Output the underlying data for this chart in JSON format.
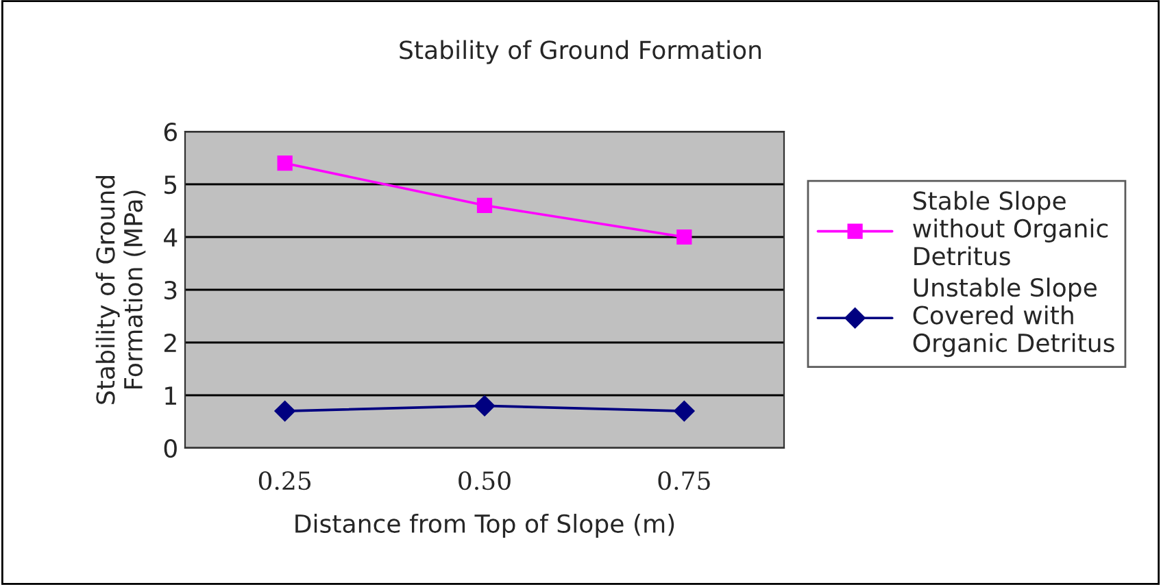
{
  "chart_data": {
    "type": "line",
    "title": "Stability of Ground Formation",
    "xlabel": "Distance from Top of Slope (m)",
    "ylabel": "Stability of Ground\nFormation (MPa)",
    "categories": [
      "0.25",
      "0.50",
      "0.75"
    ],
    "series": [
      {
        "name": "Stable Slope\nwithout Organic\nDetritus",
        "color": "#ff00ff",
        "marker": "square",
        "values": [
          5.4,
          4.6,
          4.0
        ]
      },
      {
        "name": "Unstable Slope\nCovered with\nOrganic Detritus",
        "color": "#000080",
        "marker": "diamond",
        "values": [
          0.7,
          0.8,
          0.7
        ]
      }
    ],
    "ylim": [
      0,
      6
    ],
    "yticks": [
      0,
      1,
      2,
      3,
      4,
      5,
      6
    ],
    "grid": "y",
    "legend": "right",
    "line_style": "solid"
  }
}
